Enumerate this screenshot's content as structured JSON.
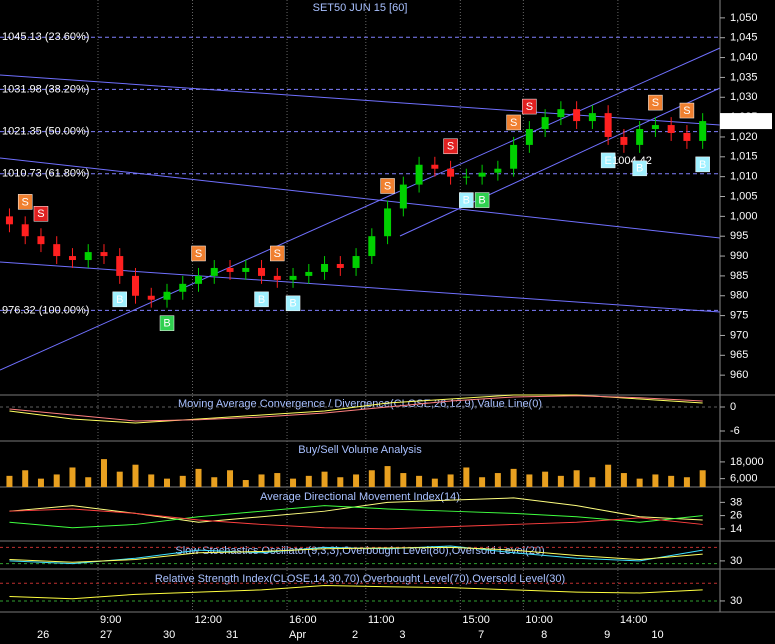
{
  "chart_data": [
    {
      "type": "candlestick",
      "title": "SET50 JUN 15   [60]",
      "up_color": "#00d000",
      "down_color": "#ff2020",
      "xlim": [
        -0.6,
        45.1
      ],
      "ylim": [
        955,
        1054.5
      ],
      "yticks": [
        960,
        965,
        970,
        975,
        980,
        985,
        990,
        995,
        {
          "value": 1000,
          "label": "1,000"
        },
        {
          "value": 1005,
          "label": "1,005"
        },
        {
          "value": 1010,
          "label": "1,010"
        },
        {
          "value": 1015,
          "label": "1,015"
        },
        {
          "value": 1020,
          "label": "1,020"
        },
        {
          "value": 1025,
          "label": "1,025"
        },
        {
          "value": 1030,
          "label": "1,030"
        },
        {
          "value": 1035,
          "label": "1,035"
        },
        {
          "value": 1040,
          "label": "1,040"
        },
        {
          "value": 1045,
          "label": "1,045"
        },
        {
          "value": 1050,
          "label": "1,050"
        }
      ],
      "categories": [
        null,
        null,
        "26",
        null,
        null,
        null,
        "27",
        null,
        null,
        null,
        "30",
        null,
        null,
        null,
        "31",
        null,
        null,
        null,
        "Apr",
        null,
        null,
        null,
        "2",
        null,
        null,
        "3",
        null,
        null,
        null,
        null,
        "7",
        null,
        null,
        null,
        "8",
        null,
        null,
        null,
        "9",
        null,
        null,
        "10",
        null,
        null,
        null
      ],
      "times": [
        null,
        null,
        null,
        null,
        null,
        null,
        "9:00",
        null,
        null,
        null,
        null,
        null,
        "12:00",
        null,
        null,
        null,
        null,
        null,
        "16:00",
        null,
        null,
        null,
        null,
        "11:00",
        null,
        null,
        null,
        null,
        null,
        "15:00",
        null,
        null,
        null,
        "10:00",
        null,
        null,
        null,
        null,
        null,
        "14:00",
        null,
        null,
        null,
        null,
        null
      ],
      "open": [
        1000,
        998,
        995,
        993,
        990,
        989,
        991,
        990,
        985,
        980,
        979,
        981,
        983,
        985,
        987,
        986,
        987,
        985,
        984,
        985,
        986,
        988,
        987,
        990,
        995,
        1002,
        1008,
        1013,
        1012,
        1010,
        1010,
        1011,
        1012,
        1018,
        1022,
        1025,
        1027,
        1024,
        1026,
        1020,
        1018,
        1022,
        1023,
        1021,
        1019
      ],
      "high": [
        1002,
        1000,
        997,
        995,
        992,
        993,
        993,
        992,
        987,
        982,
        983,
        985,
        987,
        989,
        989,
        989,
        989,
        987,
        987,
        988,
        990,
        990,
        992,
        997,
        1004,
        1010,
        1015,
        1015,
        1014,
        1012,
        1013,
        1014,
        1020,
        1024,
        1027,
        1029,
        1029,
        1028,
        1028,
        1022,
        1024,
        1025,
        1025,
        1023,
        1026
      ],
      "low": [
        996,
        993,
        991,
        988,
        987,
        987,
        988,
        983,
        978,
        977,
        977,
        979,
        981,
        983,
        984,
        984,
        983,
        982,
        982,
        983,
        984,
        985,
        985,
        988,
        993,
        1000,
        1006,
        1010,
        1008,
        1008,
        1008,
        1009,
        1010,
        1016,
        1020,
        1023,
        1022,
        1022,
        1018,
        1016,
        1016,
        1020,
        1019,
        1017,
        1017
      ],
      "close": [
        998,
        995,
        993,
        990,
        989,
        991,
        990,
        985,
        980,
        979,
        981,
        983,
        985,
        987,
        986,
        987,
        985,
        984,
        985,
        986,
        988,
        987,
        990,
        995,
        1002,
        1008,
        1013,
        1012,
        1010,
        1010,
        1011,
        1012,
        1018,
        1022,
        1025,
        1027,
        1024,
        1026,
        1020,
        1018,
        1022,
        1023,
        1021,
        1019,
        1024
      ],
      "fib_levels": [
        {
          "value": 1045.13,
          "label": "1045.13 (23.60%)"
        },
        {
          "value": 1031.98,
          "label": "1031.98 (38.20%)"
        },
        {
          "value": 1021.35,
          "label": "1021.35 (50.00%)"
        },
        {
          "value": 1010.73,
          "label": "1010.73 (61.80%)"
        },
        {
          "value": 976.32,
          "label": "976.32 (100.00%)"
        }
      ],
      "fib_color": "#8080ff",
      "signals": [
        {
          "index": 1,
          "label": "S",
          "color": "#f08030"
        },
        {
          "index": 2,
          "label": "S",
          "color": "#e02020"
        },
        {
          "index": 7,
          "label": "B",
          "color": "#a0f0ff"
        },
        {
          "index": 10,
          "label": "B",
          "color": "#30d050"
        },
        {
          "index": 12,
          "label": "S",
          "color": "#f08030"
        },
        {
          "index": 16,
          "label": "B",
          "color": "#a0f0ff"
        },
        {
          "index": 17,
          "label": "S",
          "color": "#f08030"
        },
        {
          "index": 18,
          "label": "B",
          "color": "#a0f0ff"
        },
        {
          "index": 24,
          "label": "S",
          "color": "#f08030"
        },
        {
          "index": 28,
          "label": "S",
          "color": "#e02020"
        },
        {
          "index": 29,
          "label": "B",
          "color": "#a0f0ff"
        },
        {
          "index": 30,
          "label": "B",
          "color": "#30d050"
        },
        {
          "index": 32,
          "label": "S",
          "color": "#f08030"
        },
        {
          "index": 33,
          "label": "S",
          "color": "#e02020"
        },
        {
          "index": 38,
          "label": "E",
          "color": "#a0f0ff"
        },
        {
          "index": 40,
          "label": "B",
          "color": "#a0f0ff"
        },
        {
          "index": 41,
          "label": "S",
          "color": "#f08030"
        },
        {
          "index": 43,
          "label": "S",
          "color": "#f08030"
        },
        {
          "index": 44,
          "label": "B",
          "color": "#a0f0ff"
        }
      ],
      "annotation": "1004.42",
      "last_price": {
        "value": 1024,
        "label": "1,024.00"
      }
    },
    {
      "type": "line",
      "title": "Moving Average Convergence / Divergence(CLOSE,26,12,9),Value Line(0)",
      "xlim": [
        -0.6,
        45.1
      ],
      "ylim": [
        -8.25,
        3
      ],
      "yticks": [
        0,
        -6
      ],
      "levels": [
        0
      ],
      "x": [
        0,
        4,
        8,
        12,
        16,
        20,
        24,
        28,
        32,
        36,
        40,
        44
      ],
      "series": [
        {
          "color": "#ffff60",
          "values": [
            -1,
            -3,
            -4,
            -3,
            -2,
            -1,
            1,
            2,
            3,
            3,
            2,
            1
          ]
        },
        {
          "color": "#ff8080",
          "values": [
            -0.5,
            -2,
            -3.5,
            -3.2,
            -2.5,
            -1.5,
            0,
            1.5,
            2.5,
            2.8,
            2.3,
            1.5
          ]
        }
      ]
    },
    {
      "type": "bar",
      "title": "Buy/Sell Volume Analysis",
      "xlim": [
        -0.6,
        45.1
      ],
      "ylim": [
        0,
        33000
      ],
      "yticks": [
        {
          "value": 18000,
          "label": "18,000"
        },
        {
          "value": 6000,
          "label": "6,000"
        }
      ],
      "color": "#e8a020",
      "values": [
        8000,
        12000,
        6000,
        9000,
        14000,
        7000,
        20000,
        11000,
        16000,
        9000,
        6000,
        8000,
        13000,
        7000,
        12000,
        5000,
        9000,
        10000,
        6000,
        8000,
        11000,
        7000,
        9000,
        12000,
        15000,
        10000,
        8000,
        6000,
        9000,
        14000,
        7000,
        10000,
        13000,
        9000,
        11000,
        8000,
        12000,
        7000,
        16000,
        10000,
        6000,
        9000,
        8000,
        7000,
        12000
      ]
    },
    {
      "type": "line",
      "title": "Average Directional Movement Index(14)",
      "xlim": [
        -0.6,
        45.1
      ],
      "ylim": [
        3,
        51
      ],
      "yticks": [
        38,
        26,
        14
      ],
      "x": [
        0,
        4,
        8,
        12,
        16,
        20,
        24,
        28,
        32,
        36,
        40,
        44
      ],
      "series": [
        {
          "color": "#ffff80",
          "values": [
            30,
            35,
            28,
            20,
            25,
            30,
            38,
            40,
            42,
            35,
            25,
            22
          ]
        },
        {
          "color": "#40ff40",
          "values": [
            20,
            15,
            18,
            25,
            30,
            35,
            32,
            30,
            28,
            25,
            20,
            26
          ]
        },
        {
          "color": "#ff4040",
          "values": [
            30,
            32,
            28,
            22,
            18,
            15,
            14,
            16,
            18,
            20,
            24,
            18
          ]
        }
      ]
    },
    {
      "type": "line",
      "title": "Slow Stochastics Oscillator(9,3,3),Overbought Level(80),Oversold Level(20)",
      "xlim": [
        -0.6,
        45.1
      ],
      "ylim": [
        0,
        100
      ],
      "yticks": [
        30
      ],
      "levels": [
        80,
        20
      ],
      "x": [
        0,
        4,
        8,
        12,
        16,
        20,
        24,
        28,
        32,
        36,
        40,
        44
      ],
      "series": [
        {
          "color": "#40e0ff",
          "values": [
            30,
            20,
            40,
            70,
            60,
            80,
            75,
            85,
            60,
            40,
            30,
            70
          ]
        },
        {
          "color": "#ffff60",
          "values": [
            35,
            25,
            35,
            60,
            65,
            75,
            78,
            80,
            70,
            50,
            35,
            55
          ]
        }
      ]
    },
    {
      "type": "line",
      "title": "Relative Strength Index(CLOSE,14,30,70),Overbought Level(70),Oversold Level(30)",
      "xlim": [
        -0.6,
        45.1
      ],
      "ylim": [
        5,
        100
      ],
      "yticks": [
        30
      ],
      "levels": [
        70,
        30
      ],
      "x": [
        0,
        4,
        8,
        12,
        16,
        20,
        24,
        28,
        32,
        36,
        40,
        44
      ],
      "series": [
        {
          "color": "#ffff40",
          "values": [
            40,
            35,
            45,
            50,
            55,
            65,
            62,
            60,
            55,
            50,
            48,
            55
          ]
        }
      ]
    }
  ]
}
